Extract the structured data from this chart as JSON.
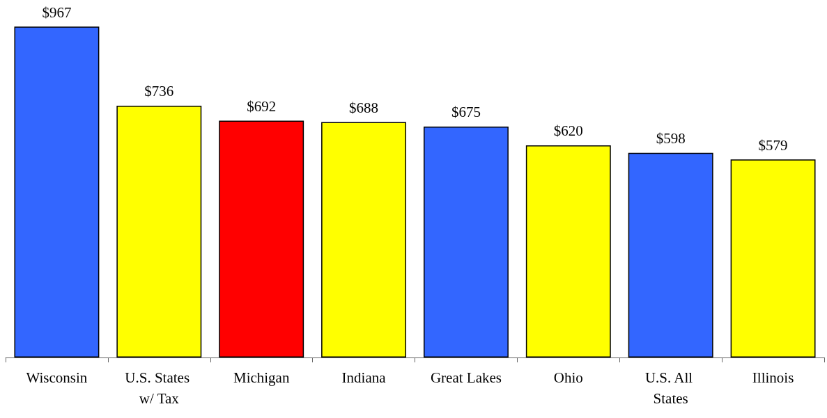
{
  "chart_data": {
    "type": "bar",
    "categories": [
      "Wisconsin",
      "U.S. States w/ Tax",
      "Michigan",
      "Indiana",
      "Great Lakes",
      "Ohio",
      "U.S. All States",
      "Illinois"
    ],
    "values": [
      967,
      736,
      692,
      688,
      675,
      620,
      598,
      579
    ],
    "colors": [
      "#3366ff",
      "#ffff00",
      "#ff0000",
      "#ffff00",
      "#3366ff",
      "#ffff00",
      "#3366ff",
      "#ffff00"
    ],
    "value_labels": [
      "$967",
      "$736",
      "$692",
      "$688",
      "$675",
      "$620",
      "$598",
      "$579"
    ],
    "grid": false
  }
}
